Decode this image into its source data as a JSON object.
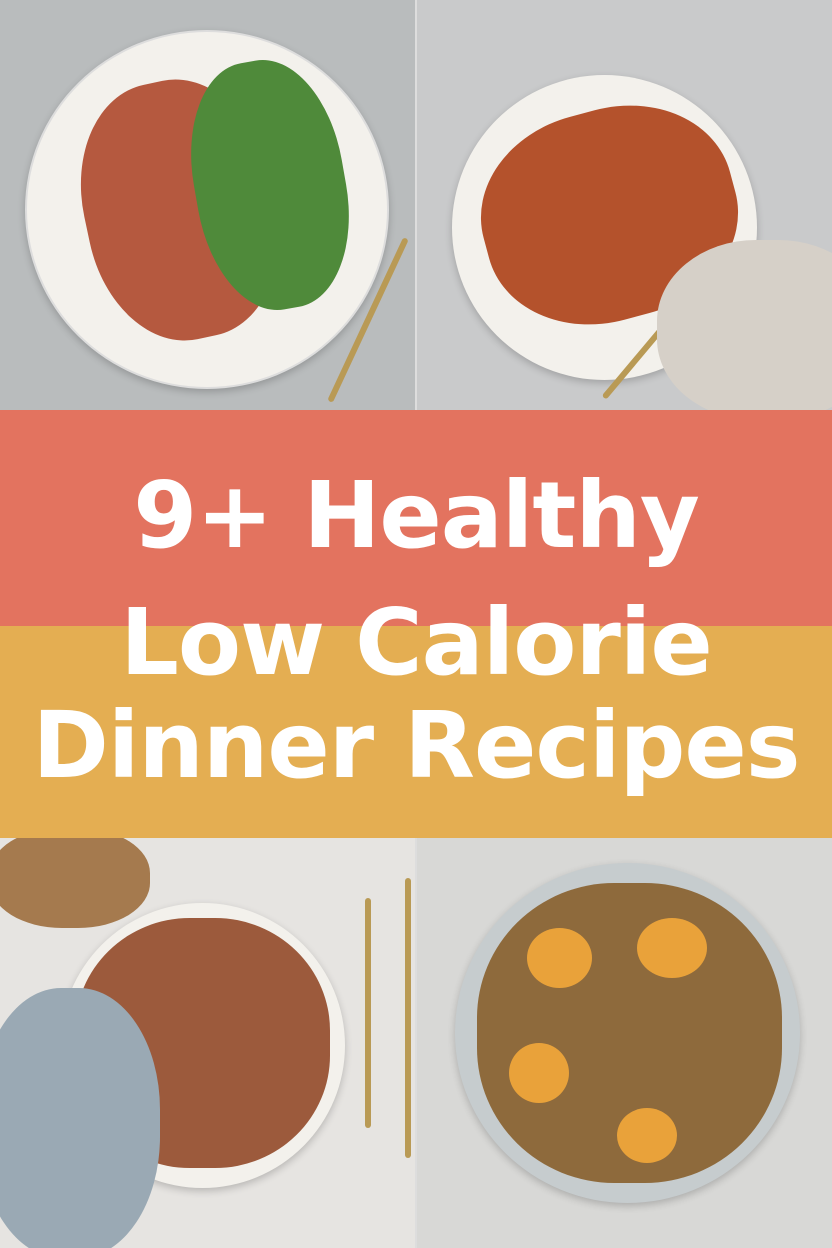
{
  "colors": {
    "coral": "#E3735F",
    "yellow": "#E4AE52",
    "text": "#FFFFFF"
  },
  "title": {
    "line1": "9+ Healthy",
    "line2": "Low Calorie",
    "line3": "Dinner Recipes"
  }
}
